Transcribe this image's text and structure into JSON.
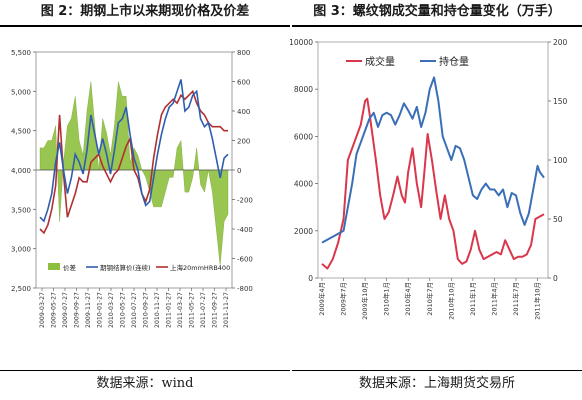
{
  "left": {
    "title": "图 2：期钢上市以来期现价格及价差",
    "source": "数据来源：wind",
    "chart_data": {
      "type": "line",
      "x_ticks": [
        "2009-03-27",
        "2009-05-27",
        "2009-07-27",
        "2009-09-27",
        "2009-11-27",
        "2010-01-27",
        "2010-03-27",
        "2010-05-27",
        "2010-07-27",
        "2010-09-27",
        "2010-11-27",
        "2011-01-27",
        "2011-03-27",
        "2011-05-27",
        "2011-07-27",
        "2011-09-27",
        "2011-11-27"
      ],
      "y_left": {
        "min": 2500,
        "max": 5500,
        "ticks": [
          "2,500",
          "3,000",
          "3,500",
          "4,000",
          "4,500",
          "5,000",
          "5,500"
        ]
      },
      "y_right": {
        "min": -800,
        "max": 800,
        "ticks": [
          "-800",
          "-600",
          "-400",
          "-200",
          "0",
          "200",
          "400",
          "600",
          "800"
        ]
      },
      "legend": [
        "价差",
        "期钢结算价(连续)",
        "上海20mmHRB400"
      ],
      "series": [
        {
          "name": "期钢结算价(连续)",
          "axis": "left",
          "color": "#2e5eb0",
          "x": [
            0,
            1,
            2,
            3,
            4,
            5,
            6,
            7,
            8,
            9,
            10,
            11,
            12,
            13,
            14,
            15,
            16,
            17,
            18,
            19,
            20,
            21,
            22,
            23,
            24,
            25,
            26,
            27,
            28,
            29,
            30,
            31,
            32,
            33,
            34,
            35,
            36,
            37,
            38,
            39,
            40,
            41,
            42,
            43,
            44,
            45,
            46,
            47,
            48
          ],
          "values": [
            3400,
            3350,
            3500,
            3700,
            4100,
            4350,
            4000,
            3700,
            3900,
            4200,
            4100,
            3950,
            4250,
            4700,
            4450,
            4200,
            4400,
            4200,
            3950,
            4250,
            4600,
            4650,
            4800,
            4450,
            4150,
            4000,
            3700,
            3550,
            3600,
            3900,
            4200,
            4450,
            4650,
            4800,
            4850,
            5000,
            5150,
            4750,
            4800,
            4950,
            5000,
            4650,
            4550,
            4600,
            4400,
            4150,
            3900,
            4150,
            4200
          ]
        },
        {
          "name": "上海20mmHRB400",
          "axis": "left",
          "color": "#b03030",
          "x": [
            0,
            1,
            2,
            3,
            4,
            5,
            6,
            7,
            8,
            9,
            10,
            11,
            12,
            13,
            14,
            15,
            16,
            17,
            18,
            19,
            20,
            21,
            22,
            23,
            24,
            25,
            26,
            27,
            28,
            29,
            30,
            31,
            32,
            33,
            34,
            35,
            36,
            37,
            38,
            39,
            40,
            41,
            42,
            43,
            44,
            45,
            46,
            47,
            48
          ],
          "values": [
            3250,
            3200,
            3300,
            3500,
            3800,
            4700,
            3950,
            3400,
            3550,
            3700,
            3900,
            3850,
            3850,
            4100,
            4150,
            4200,
            4050,
            3950,
            3850,
            3950,
            4000,
            4150,
            4300,
            4400,
            4000,
            3900,
            3700,
            3600,
            3750,
            4150,
            4450,
            4700,
            4800,
            4850,
            4900,
            4850,
            4950,
            4900,
            4950,
            5000,
            4850,
            4750,
            4700,
            4600,
            4550,
            4550,
            4550,
            4500,
            4500
          ]
        },
        {
          "name": "价差",
          "axis": "right",
          "type": "area",
          "color": "#8fbf3f",
          "x": [
            0,
            1,
            2,
            3,
            4,
            5,
            6,
            7,
            8,
            9,
            10,
            11,
            12,
            13,
            14,
            15,
            16,
            17,
            18,
            19,
            20,
            21,
            22,
            23,
            24,
            25,
            26,
            27,
            28,
            29,
            30,
            31,
            32,
            33,
            34,
            35,
            36,
            37,
            38,
            39,
            40,
            41,
            42,
            43,
            44,
            45,
            46,
            47,
            48
          ],
          "values": [
            150,
            150,
            200,
            200,
            300,
            -350,
            50,
            300,
            350,
            500,
            200,
            100,
            400,
            600,
            300,
            0,
            350,
            250,
            100,
            300,
            600,
            500,
            500,
            50,
            150,
            100,
            0,
            -50,
            -150,
            -250,
            -250,
            -250,
            -150,
            -50,
            -50,
            150,
            200,
            -150,
            -150,
            -50,
            150,
            -100,
            -150,
            0,
            -150,
            -400,
            -650,
            -350,
            -300
          ]
        }
      ]
    }
  },
  "right": {
    "title": "图 3：螺纹钢成交量和持仓量变化（万手）",
    "source": "数据来源：上海期货交易所",
    "chart_data": {
      "type": "line",
      "x_ticks": [
        "2009年4月",
        "2009年7月",
        "2009年10月",
        "2010年1月",
        "2010年4月",
        "2010年7月",
        "2010年10月",
        "2011年1月",
        "2011年4月",
        "2011年7月",
        "2011年10月"
      ],
      "y_left": {
        "min": 0,
        "max": 10000,
        "ticks": [
          "0",
          "2000",
          "4000",
          "6000",
          "8000",
          "10000"
        ]
      },
      "y_right": {
        "min": 0,
        "max": 200,
        "ticks": [
          "0",
          "50",
          "100",
          "150",
          "200"
        ]
      },
      "legend": [
        "成交量",
        "持仓量"
      ],
      "series": [
        {
          "name": "成交量",
          "axis": "left",
          "color": "#d9374b",
          "x": [
            0,
            0.25,
            0.5,
            0.75,
            1,
            1.2,
            1.4,
            1.6,
            1.8,
            2,
            2.1,
            2.2,
            2.35,
            2.5,
            2.7,
            2.9,
            3.1,
            3.3,
            3.5,
            3.7,
            3.85,
            4,
            4.2,
            4.4,
            4.6,
            4.75,
            4.9,
            5.1,
            5.3,
            5.5,
            5.7,
            5.9,
            6.1,
            6.3,
            6.5,
            6.7,
            6.9,
            7.1,
            7.3,
            7.5,
            7.7,
            7.9,
            8.1,
            8.3,
            8.5,
            8.7,
            8.9,
            9.1,
            9.3,
            9.5,
            9.7,
            9.9,
            10.1,
            10.3
          ],
          "values": [
            600,
            400,
            800,
            1500,
            2500,
            5000,
            5500,
            6000,
            6500,
            7500,
            7600,
            7000,
            6000,
            5000,
            3500,
            2500,
            2800,
            3500,
            4300,
            3500,
            3200,
            4500,
            5500,
            4000,
            3000,
            4500,
            6100,
            5000,
            3700,
            2500,
            3500,
            2500,
            2000,
            800,
            600,
            700,
            1200,
            2000,
            1200,
            800,
            900,
            1000,
            1100,
            1000,
            1600,
            1200,
            800,
            900,
            900,
            1000,
            1400,
            2500,
            2600,
            2700
          ]
        },
        {
          "name": "持仓量",
          "axis": "right",
          "color": "#3a6fb8",
          "x": [
            0,
            0.5,
            1,
            1.2,
            1.4,
            1.6,
            1.8,
            2,
            2.2,
            2.4,
            2.6,
            2.8,
            3,
            3.2,
            3.4,
            3.6,
            3.8,
            4,
            4.2,
            4.4,
            4.6,
            4.8,
            5,
            5.2,
            5.4,
            5.6,
            5.8,
            6,
            6.2,
            6.4,
            6.6,
            6.8,
            7,
            7.2,
            7.4,
            7.6,
            7.8,
            8,
            8.2,
            8.4,
            8.6,
            8.8,
            9,
            9.2,
            9.4,
            9.6,
            9.8,
            10,
            10.1,
            10.3
          ],
          "values": [
            30,
            35,
            40,
            60,
            80,
            105,
            115,
            125,
            135,
            140,
            128,
            138,
            140,
            138,
            130,
            138,
            148,
            142,
            135,
            145,
            128,
            140,
            160,
            170,
            150,
            120,
            110,
            100,
            112,
            110,
            100,
            85,
            70,
            67,
            75,
            80,
            75,
            75,
            70,
            75,
            60,
            72,
            70,
            55,
            45,
            55,
            75,
            95,
            90,
            85
          ]
        }
      ]
    }
  }
}
